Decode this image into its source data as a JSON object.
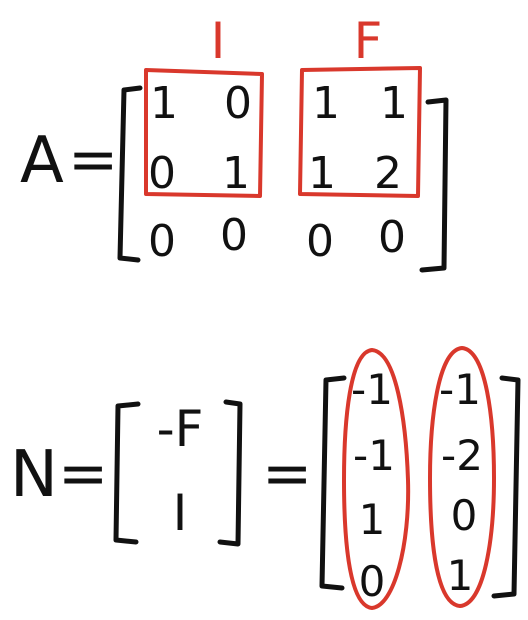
{
  "colors": {
    "ink": "#111111",
    "highlight": "#d9382c",
    "background": "#ffffff"
  },
  "labels": {
    "identity": "I",
    "free": "F"
  },
  "equation_a": {
    "lhs": "A",
    "equals": "=",
    "matrix": [
      [
        "1",
        "0",
        "1",
        "1"
      ],
      [
        "0",
        "1",
        "1",
        "2"
      ],
      [
        "0",
        "0",
        "0",
        "0"
      ]
    ]
  },
  "equation_n": {
    "lhs": "N",
    "equals": "=",
    "block": [
      "-F",
      "I"
    ],
    "equals2": "=",
    "matrix": [
      [
        "-1",
        "-1"
      ],
      [
        "-1",
        "-2"
      ],
      [
        "1",
        "0"
      ],
      [
        "0",
        "1"
      ]
    ]
  }
}
